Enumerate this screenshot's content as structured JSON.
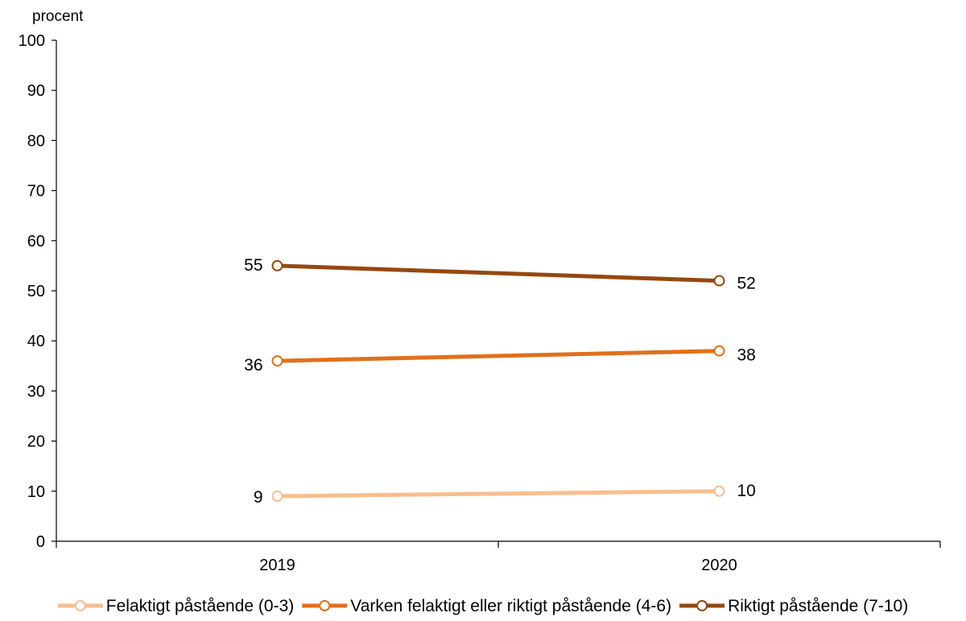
{
  "chart_data": {
    "type": "line",
    "ylabel": "procent",
    "ylim": [
      0,
      100
    ],
    "ytick_step": 10,
    "categories": [
      "2019",
      "2020"
    ],
    "series": [
      {
        "name": "Felaktigt påstående (0-3)",
        "values": [
          9,
          10
        ],
        "color": "#F8BE8E"
      },
      {
        "name": "Varken felaktigt eller riktigt påstående (4-6)",
        "values": [
          36,
          38
        ],
        "color": "#E0701C"
      },
      {
        "name": "Riktigt påstående (7-10)",
        "values": [
          55,
          52
        ],
        "color": "#96470F"
      }
    ],
    "legend_position": "bottom",
    "grid": false,
    "marker": "open-circle"
  }
}
